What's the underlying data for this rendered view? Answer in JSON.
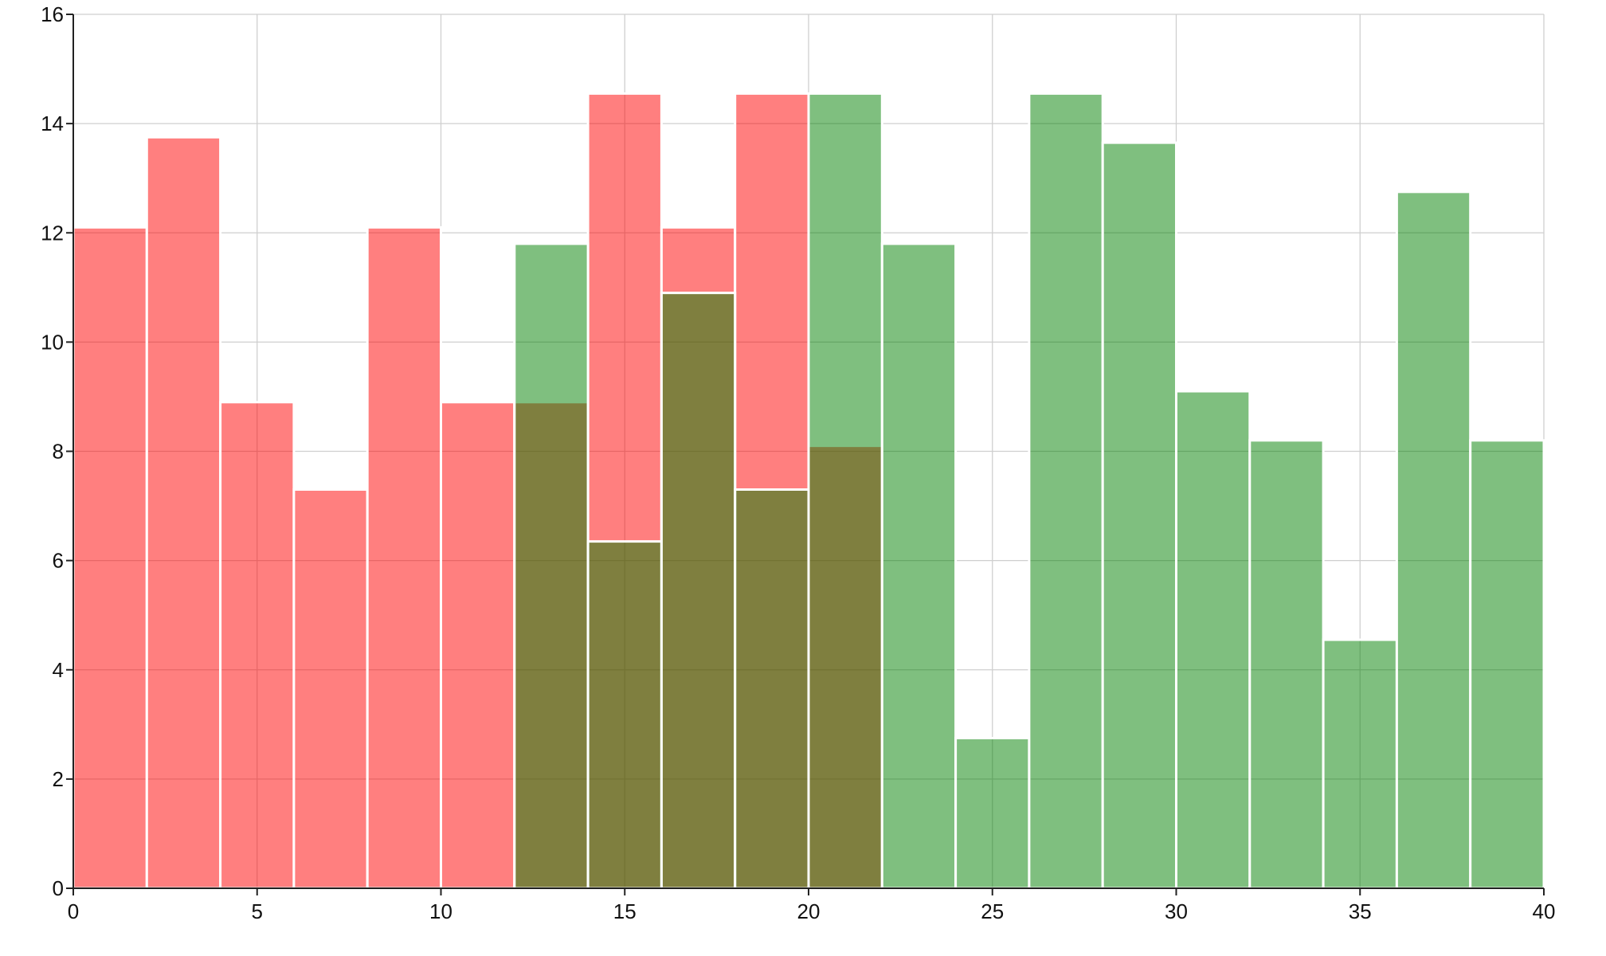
{
  "chart_data": {
    "type": "bar",
    "title": "",
    "xlabel": "",
    "ylabel": "",
    "xlim": [
      0,
      40
    ],
    "ylim": [
      0,
      16
    ],
    "x_ticks": [
      "0",
      "5",
      "10",
      "15",
      "20",
      "25",
      "30",
      "35",
      "40"
    ],
    "y_ticks": [
      "0",
      "2",
      "4",
      "6",
      "8",
      "10",
      "12",
      "14",
      "16"
    ],
    "grid": true,
    "legend": "none",
    "series": [
      {
        "color": "#ff0000",
        "opacity": 0.5,
        "bin_width": 2,
        "bin_starts": [
          0,
          2,
          4,
          6,
          8,
          10,
          12,
          14,
          16,
          18,
          20
        ],
        "values": [
          12.1,
          13.75,
          8.9,
          7.3,
          12.1,
          8.9,
          8.9,
          14.55,
          12.1,
          14.55,
          8.1
        ]
      },
      {
        "color": "#008000",
        "opacity": 0.5,
        "bin_width": 2,
        "bin_starts": [
          12,
          14,
          16,
          18,
          20,
          22,
          24,
          26,
          28,
          30,
          32,
          34,
          36,
          38
        ],
        "values": [
          11.8,
          6.35,
          10.9,
          7.3,
          14.55,
          11.8,
          2.75,
          14.55,
          13.65,
          9.1,
          8.2,
          4.55,
          12.75,
          8.2
        ]
      }
    ]
  }
}
